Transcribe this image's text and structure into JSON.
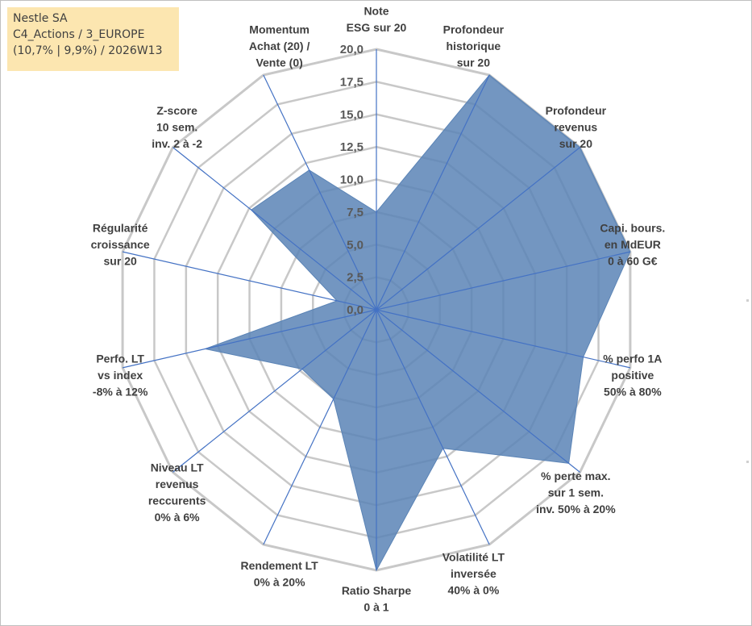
{
  "info": {
    "line1": "Nestle SA",
    "line2": "C4_Actions / 3_EUROPE",
    "line3": "(10,7% | 9,9%) / 2026W13"
  },
  "chart_data": {
    "type": "radar",
    "rmin": 0,
    "rmax": 20,
    "tick_step": 2.5,
    "tick_labels": [
      "0,0",
      "2,5",
      "5,0",
      "7,5",
      "10,0",
      "12,5",
      "15,0",
      "17,5",
      "20,0"
    ],
    "axes": [
      {
        "lines": [
          "Note",
          "ESG sur 20"
        ],
        "value": 7.5
      },
      {
        "lines": [
          "Profondeur",
          "historique",
          "sur 20"
        ],
        "value": 20
      },
      {
        "lines": [
          "Profondeur",
          "revenus",
          "sur 20"
        ],
        "value": 20
      },
      {
        "lines": [
          "Capi. bours.",
          "en MdEUR",
          "0 à 60 G€"
        ],
        "value": 20
      },
      {
        "lines": [
          "% perfo 1A",
          "positive",
          "50% à 80%"
        ],
        "value": 16.3
      },
      {
        "lines": [
          "% perte max.",
          "sur 1 sem.",
          "inv. 50% à 20%"
        ],
        "value": 18.9
      },
      {
        "lines": [
          "Volatilité LT",
          "inversée",
          "40% à 0%"
        ],
        "value": 11.8
      },
      {
        "lines": [
          "Ratio Sharpe",
          "0 à 1"
        ],
        "value": 20
      },
      {
        "lines": [
          "Rendement LT",
          "0% à 20%"
        ],
        "value": 7.6
      },
      {
        "lines": [
          "Niveau LT",
          "revenus",
          "reccurents",
          "0% à 6%"
        ],
        "value": 7.3
      },
      {
        "lines": [
          "Perfo. LT",
          "vs index",
          "-8% à 12%"
        ],
        "value": 13.5
      },
      {
        "lines": [
          "Régularité",
          "croissance",
          "sur 20"
        ],
        "value": 3.1
      },
      {
        "lines": [
          "Z-score",
          "10 sem.",
          "inv. 2 à -2"
        ],
        "value": 12.3
      },
      {
        "lines": [
          "Momentum",
          "Achat (20) /",
          "Vente (0)"
        ],
        "value": 11.9
      }
    ],
    "series_color": "#5b84b6",
    "grid_color": "#c8c8c8",
    "axis_color": "#4472c4"
  }
}
